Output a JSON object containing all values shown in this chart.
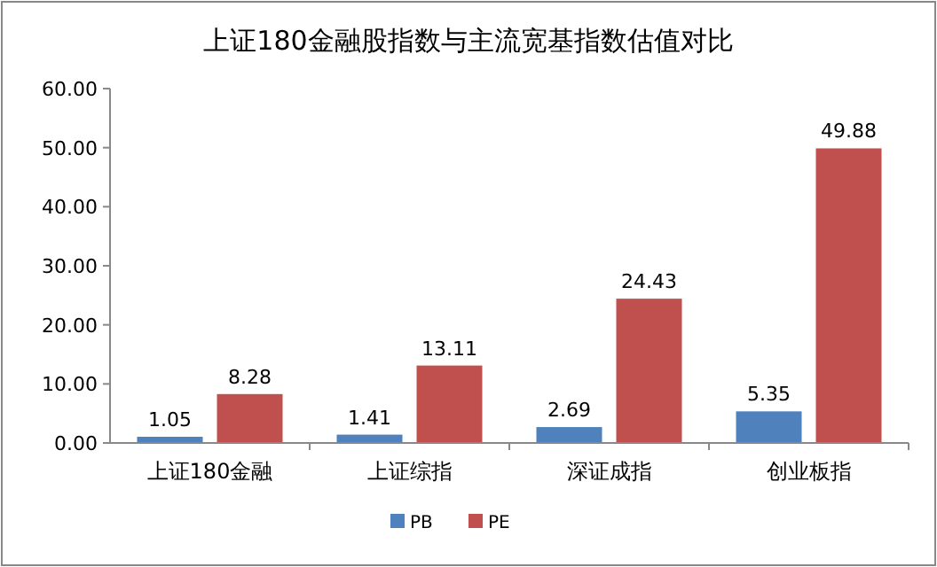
{
  "chart_data": {
    "type": "bar",
    "title": "上证180金融股指数与主流宽基指数估值对比",
    "categories": [
      "上证180金融",
      "上证综指",
      "深证成指",
      "创业板指"
    ],
    "series": [
      {
        "name": "PB",
        "color": "#4f81bd",
        "values": [
          1.05,
          1.41,
          2.69,
          5.35
        ]
      },
      {
        "name": "PE",
        "color": "#c0504d",
        "values": [
          8.28,
          13.11,
          24.43,
          49.88
        ]
      }
    ],
    "ylim": [
      0,
      60
    ],
    "yticks": [
      {
        "value": 0,
        "label": "0.00"
      },
      {
        "value": 10,
        "label": "10.00"
      },
      {
        "value": 20,
        "label": "20.00"
      },
      {
        "value": 30,
        "label": "30.00"
      },
      {
        "value": 40,
        "label": "40.00"
      },
      {
        "value": 50,
        "label": "50.00"
      },
      {
        "value": 60,
        "label": "60.00"
      }
    ],
    "data_labels": true,
    "legend": "bottom",
    "grid": false
  }
}
